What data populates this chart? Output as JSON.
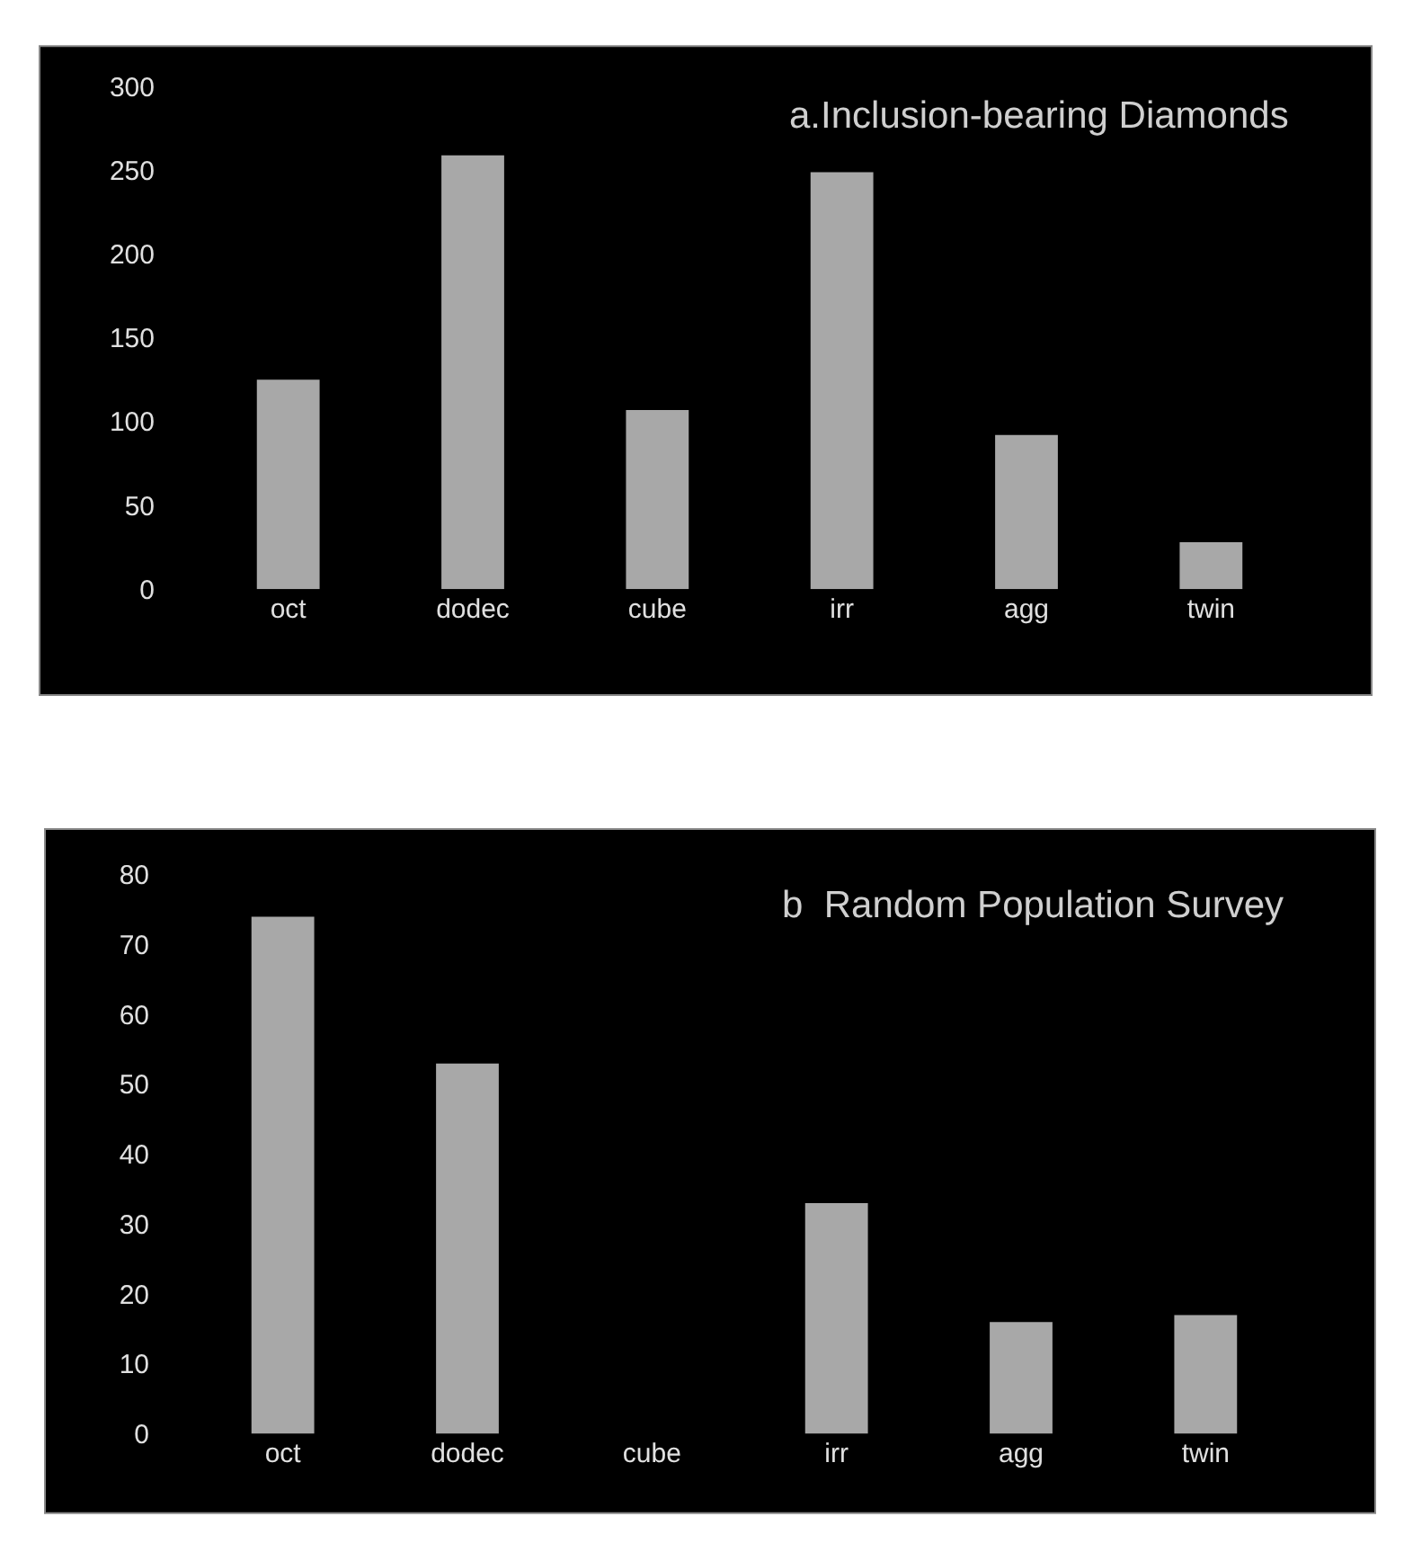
{
  "chart_data": [
    {
      "type": "bar",
      "title": "a.Inclusion-bearing Diamonds",
      "categories": [
        "oct",
        "dodec",
        "cube",
        "irr",
        "agg",
        "twin"
      ],
      "values": [
        125,
        259,
        107,
        249,
        92,
        28
      ],
      "color": "#a8a8a8",
      "ylim": [
        0,
        300
      ],
      "yticks": [
        0,
        50,
        100,
        150,
        200,
        250,
        300
      ],
      "grid": false
    },
    {
      "type": "bar",
      "title": "b  Random Population Survey",
      "categories": [
        "oct",
        "dodec",
        "cube",
        "irr",
        "agg",
        "twin"
      ],
      "values": [
        74,
        53,
        null,
        33,
        16,
        17
      ],
      "color": "#a8a8a8",
      "ylim": [
        0,
        80
      ],
      "yticks": [
        0,
        10,
        20,
        30,
        40,
        50,
        60,
        70,
        80
      ],
      "grid": false
    }
  ]
}
